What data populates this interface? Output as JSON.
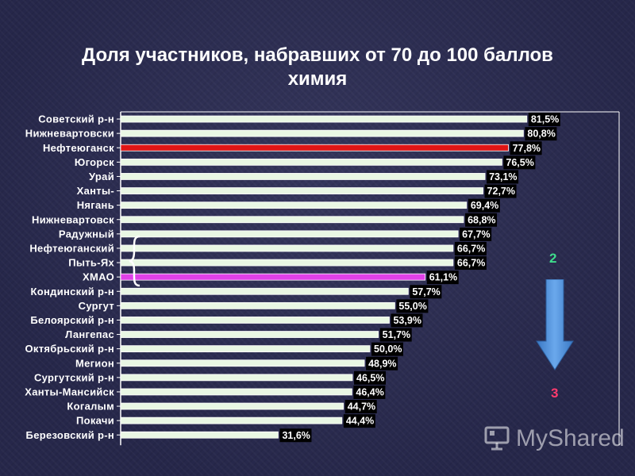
{
  "title": "Доля участников, набравших от 70 до 100 баллов",
  "subtitle": "химия",
  "chart_data": {
    "type": "bar",
    "orientation": "horizontal",
    "categories": [
      "Советский р-н",
      "Нижневартовски",
      "Нефтеюганск",
      "Югорск",
      "Урай",
      "Ханты-",
      "Нягань",
      "Нижневартовск",
      "Радужный",
      "Нефтеюганский",
      "Пыть-Ях",
      "ХМАО",
      "Кондинский р-н",
      "Сургут",
      "Белоярский р-н",
      "Лангепас",
      "Октябрьский р-н",
      "Мегион",
      "Сургутский р-н",
      "Ханты-Мансийск",
      "Когалым",
      "Покачи",
      "Березовский р-н"
    ],
    "values": [
      81.5,
      80.8,
      77.8,
      76.5,
      73.1,
      72.7,
      69.4,
      68.8,
      67.7,
      66.7,
      66.7,
      61.1,
      57.7,
      55.0,
      53.9,
      51.7,
      50.0,
      48.9,
      46.5,
      46.4,
      44.7,
      44.4,
      31.6
    ],
    "value_labels": [
      "81,5%",
      "80,8%",
      "77,8%",
      "76,5%",
      "73,1%",
      "72,7%",
      "69,4%",
      "68,8%",
      "67,7%",
      "66,7%",
      "66,7%",
      "61,1%",
      "57,7%",
      "55,0%",
      "53,9%",
      "51,7%",
      "50,0%",
      "48,9%",
      "46,5%",
      "46,4%",
      "44,7%",
      "44,4%",
      "31,6%"
    ],
    "xlim": [
      0,
      100
    ],
    "grid": false,
    "colors": {
      "default_bar": "#e9f7e4",
      "highlight_red": "#e01515",
      "highlight_magenta": "#e040e8",
      "axis": "#ffffff",
      "label_bg": "#000000"
    },
    "highlights": {
      "Нефтеюганск": "#e01515",
      "ХМАО": "#e040e8"
    }
  },
  "annotations": {
    "rank_top": "2",
    "rank_bottom": "3",
    "arrow_icon": "down-arrow-icon",
    "brace_icon": "curly-brace-icon"
  },
  "watermark": {
    "text": "MyShared",
    "icon": "presentation-board-icon"
  }
}
